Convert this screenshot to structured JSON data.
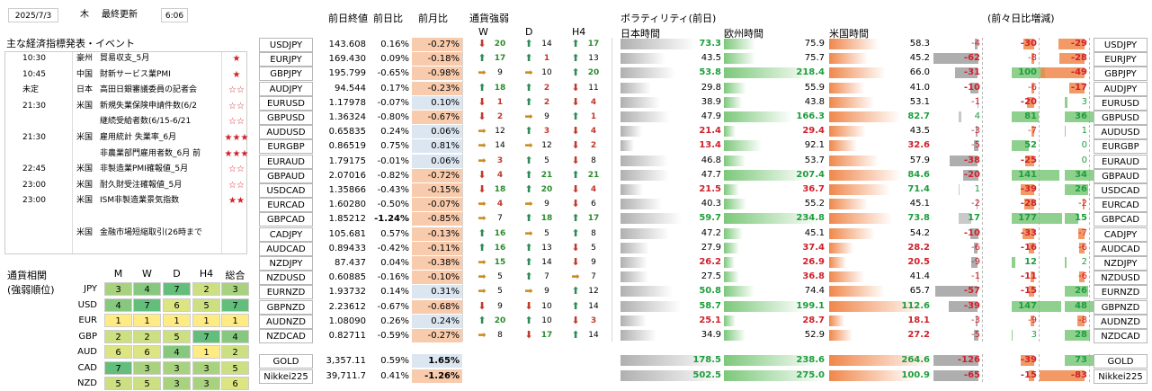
{
  "header": {
    "date": "2025/7/3",
    "weekday": "木",
    "update_label": "最終更新",
    "update_time": "6:06"
  },
  "events": {
    "title": "主な経済指標発表・イベント",
    "rows": [
      {
        "time": "10:30",
        "country": "豪州",
        "name": "貿易収支_5月",
        "stars": "★"
      },
      {
        "time": "10:45",
        "country": "中国",
        "name": "財新サービス業PMI",
        "stars": "★"
      },
      {
        "time": "未定",
        "country": "日本",
        "name": "高田日銀審議委員の記者会",
        "stars": "☆☆"
      },
      {
        "time": "21:30",
        "country": "米国",
        "name": "新規失業保険申請件数(6/2",
        "stars": "☆☆"
      },
      {
        "time": "",
        "country": "",
        "name": "継続受給者数(6/15-6/21",
        "stars": "☆☆"
      },
      {
        "time": "21:30",
        "country": "米国",
        "name": "雇用統計 失業率_6月",
        "stars": "★★★"
      },
      {
        "time": "",
        "country": "",
        "name": "非農業部門雇用者数_6月 前",
        "stars": "★★★"
      },
      {
        "time": "22:45",
        "country": "米国",
        "name": "非製造業PMI確報値_5月",
        "stars": "☆☆"
      },
      {
        "time": "23:00",
        "country": "米国",
        "name": "耐久財受注確報値_5月",
        "stars": "☆☆"
      },
      {
        "time": "23:00",
        "country": "米国",
        "name": "ISM非製造業景気指数",
        "stars": "★★"
      },
      {
        "time": "",
        "country": "",
        "name": "",
        "stars": ""
      },
      {
        "time": "",
        "country": "米国",
        "name": "金融市場短縮取引(26時まで",
        "stars": ""
      }
    ]
  },
  "correlation": {
    "title1": "通貨相関",
    "title2": "(強弱順位)",
    "headers": [
      "M",
      "W",
      "D",
      "H4",
      "総合"
    ],
    "rows": [
      {
        "ccy": "JPY",
        "vals": [
          "3",
          "4",
          "7",
          "2",
          "3"
        ]
      },
      {
        "ccy": "USD",
        "vals": [
          "4",
          "7",
          "6",
          "5",
          "7"
        ]
      },
      {
        "ccy": "EUR",
        "vals": [
          "1",
          "1",
          "1",
          "1",
          "1"
        ]
      },
      {
        "ccy": "GBP",
        "vals": [
          "2",
          "2",
          "5",
          "7",
          "4"
        ]
      },
      {
        "ccy": "AUD",
        "vals": [
          "6",
          "6",
          "4",
          "1",
          "2"
        ]
      },
      {
        "ccy": "CAD",
        "vals": [
          "7",
          "3",
          "3",
          "3",
          "5"
        ]
      },
      {
        "ccy": "NZD",
        "vals": [
          "5",
          "5",
          "3",
          "3",
          "6"
        ]
      }
    ]
  },
  "market": {
    "headers": {
      "close": "前日終値",
      "dchg": "前日比",
      "mchg": "前月比",
      "strength": "通貨強弱",
      "w": "W",
      "d": "D",
      "h4": "H4",
      "vol": "ボラティリティ(前日)",
      "jp": "日本時間",
      "eu": "欧州時間",
      "us": "米国時間",
      "diff": "(前々日比増減)"
    },
    "rows": [
      {
        "pair": "USDJPY",
        "close": "143.608",
        "dchg": "0.16%",
        "mchg": "-0.27%",
        "w": [
          "dn",
          "20"
        ],
        "d": [
          "up",
          "14"
        ],
        "h4": [
          "up",
          "17"
        ],
        "vjp": "73.3",
        "veu": "75.9",
        "vus": "58.3",
        "djp": "-4",
        "deu": "-30",
        "dus": "-29"
      },
      {
        "pair": "EURJPY",
        "close": "169.430",
        "dchg": "0.09%",
        "mchg": "-0.18%",
        "w": [
          "up",
          "17"
        ],
        "d": [
          "up",
          "1"
        ],
        "h4": [
          "up",
          "13"
        ],
        "vjp": "43.5",
        "veu": "75.7",
        "vus": "45.2",
        "djp": "-62",
        "deu": "-8",
        "dus": "-28"
      },
      {
        "pair": "GBPJPY",
        "close": "195.799",
        "dchg": "-0.65%",
        "mchg": "-0.98%",
        "w": [
          "fl",
          "9"
        ],
        "d": [
          "fl",
          "10"
        ],
        "h4": [
          "up",
          "20"
        ],
        "vjp": "53.8",
        "veu": "218.4",
        "vus": "66.0",
        "djp": "-31",
        "deu": "100",
        "dus": "-49"
      },
      {
        "pair": "AUDJPY",
        "close": "94.544",
        "dchg": "0.17%",
        "mchg": "-0.23%",
        "w": [
          "up",
          "18"
        ],
        "d": [
          "up",
          "2"
        ],
        "h4": [
          "dn",
          "11"
        ],
        "vjp": "29.8",
        "veu": "55.9",
        "vus": "41.0",
        "djp": "-10",
        "deu": "-6",
        "dus": "-17"
      },
      {
        "pair": "EURUSD",
        "close": "1.17978",
        "dchg": "-0.07%",
        "mchg": "0.10%",
        "w": [
          "dn",
          "1"
        ],
        "d": [
          "up",
          "2"
        ],
        "h4": [
          "dn",
          "4"
        ],
        "vjp": "38.9",
        "veu": "43.8",
        "vus": "53.1",
        "djp": "-1",
        "deu": "-20",
        "dus": "3"
      },
      {
        "pair": "GBPUSD",
        "close": "1.36324",
        "dchg": "-0.80%",
        "mchg": "-0.67%",
        "w": [
          "dn",
          "2"
        ],
        "d": [
          "fl",
          "9"
        ],
        "h4": [
          "up",
          "1"
        ],
        "vjp": "47.9",
        "veu": "166.3",
        "vus": "82.7",
        "djp": "4",
        "deu": "81",
        "dus": "36"
      },
      {
        "pair": "AUDUSD",
        "close": "0.65835",
        "dchg": "0.24%",
        "mchg": "0.06%",
        "w": [
          "fl",
          "12"
        ],
        "d": [
          "up",
          "3"
        ],
        "h4": [
          "dn",
          "4"
        ],
        "vjp": "21.4",
        "veu": "29.4",
        "vus": "43.5",
        "djp": "-3",
        "deu": "-7",
        "dus": "1"
      },
      {
        "pair": "EURGBP",
        "close": "0.86519",
        "dchg": "0.75%",
        "mchg": "0.81%",
        "w": [
          "fl",
          "14"
        ],
        "d": [
          "fl",
          "12"
        ],
        "h4": [
          "dn",
          "2"
        ],
        "vjp": "13.4",
        "veu": "92.1",
        "vus": "32.6",
        "djp": "-5",
        "deu": "52",
        "dus": "0"
      },
      {
        "pair": "EURAUD",
        "close": "1.79175",
        "dchg": "-0.01%",
        "mchg": "0.06%",
        "w": [
          "fl",
          "3"
        ],
        "d": [
          "up",
          "5"
        ],
        "h4": [
          "dn",
          "8"
        ],
        "vjp": "46.8",
        "veu": "53.7",
        "vus": "57.9",
        "djp": "-38",
        "deu": "-25",
        "dus": "0"
      },
      {
        "pair": "GBPAUD",
        "close": "2.07016",
        "dchg": "-0.82%",
        "mchg": "-0.72%",
        "w": [
          "dn",
          "4"
        ],
        "d": [
          "up",
          "21"
        ],
        "h4": [
          "up",
          "21"
        ],
        "vjp": "47.7",
        "veu": "207.4",
        "vus": "84.6",
        "djp": "-20",
        "deu": "141",
        "dus": "34"
      },
      {
        "pair": "USDCAD",
        "close": "1.35866",
        "dchg": "-0.43%",
        "mchg": "-0.15%",
        "w": [
          "dn",
          "18"
        ],
        "d": [
          "up",
          "20"
        ],
        "h4": [
          "dn",
          "4"
        ],
        "vjp": "21.5",
        "veu": "36.7",
        "vus": "71.4",
        "djp": "1",
        "deu": "-39",
        "dus": "26"
      },
      {
        "pair": "EURCAD",
        "close": "1.60280",
        "dchg": "-0.50%",
        "mchg": "-0.07%",
        "w": [
          "fl",
          "4"
        ],
        "d": [
          "fl",
          "9"
        ],
        "h4": [
          "dn",
          "6"
        ],
        "vjp": "40.3",
        "veu": "55.2",
        "vus": "45.1",
        "djp": "-2",
        "deu": "-28",
        "dus": "-2"
      },
      {
        "pair": "GBPCAD",
        "close": "1.85212",
        "dchg": "-1.24%",
        "mchg": "-0.85%",
        "w": [
          "fl",
          "7"
        ],
        "d": [
          "up",
          "18"
        ],
        "h4": [
          "up",
          "17"
        ],
        "vjp": "59.7",
        "veu": "234.8",
        "vus": "73.8",
        "djp": "17",
        "deu": "177",
        "dus": "15"
      },
      {
        "pair": "CADJPY",
        "close": "105.681",
        "dchg": "0.57%",
        "mchg": "-0.13%",
        "w": [
          "up",
          "16"
        ],
        "d": [
          "fl",
          "5"
        ],
        "h4": [
          "up",
          "8"
        ],
        "vjp": "47.2",
        "veu": "45.1",
        "vus": "54.2",
        "djp": "-10",
        "deu": "-33",
        "dus": "-7"
      },
      {
        "pair": "AUDCAD",
        "close": "0.89433",
        "dchg": "-0.42%",
        "mchg": "-0.11%",
        "w": [
          "up",
          "16"
        ],
        "d": [
          "up",
          "13"
        ],
        "h4": [
          "dn",
          "5"
        ],
        "vjp": "27.9",
        "veu": "37.4",
        "vus": "28.2",
        "djp": "-6",
        "deu": "-16",
        "dus": "-6"
      },
      {
        "pair": "NZDJPY",
        "close": "87.437",
        "dchg": "0.04%",
        "mchg": "-0.38%",
        "w": [
          "fl",
          "15"
        ],
        "d": [
          "up",
          "14"
        ],
        "h4": [
          "dn",
          "9"
        ],
        "vjp": "26.2",
        "veu": "26.9",
        "vus": "20.5",
        "djp": "-9",
        "deu": "12",
        "dus": "2"
      },
      {
        "pair": "NZDUSD",
        "close": "0.60885",
        "dchg": "-0.16%",
        "mchg": "-0.10%",
        "w": [
          "fl",
          "5"
        ],
        "d": [
          "up",
          "7"
        ],
        "h4": [
          "fl",
          "7"
        ],
        "vjp": "27.5",
        "veu": "36.8",
        "vus": "41.4",
        "djp": "-1",
        "deu": "-11",
        "dus": "-6"
      },
      {
        "pair": "EURNZD",
        "close": "1.93732",
        "dchg": "0.14%",
        "mchg": "0.31%",
        "w": [
          "fl",
          "5"
        ],
        "d": [
          "fl",
          "9"
        ],
        "h4": [
          "up",
          "12"
        ],
        "vjp": "50.8",
        "veu": "74.4",
        "vus": "65.7",
        "djp": "-57",
        "deu": "-15",
        "dus": "26"
      },
      {
        "pair": "GBPNZD",
        "close": "2.23612",
        "dchg": "-0.67%",
        "mchg": "-0.68%",
        "w": [
          "dn",
          "9"
        ],
        "d": [
          "dn",
          "10"
        ],
        "h4": [
          "up",
          "14"
        ],
        "vjp": "58.7",
        "veu": "199.1",
        "vus": "112.6",
        "djp": "-39",
        "deu": "147",
        "dus": "48"
      },
      {
        "pair": "AUDNZD",
        "close": "1.08090",
        "dchg": "0.26%",
        "mchg": "0.24%",
        "w": [
          "up",
          "20"
        ],
        "d": [
          "up",
          "10"
        ],
        "h4": [
          "dn",
          "3"
        ],
        "vjp": "25.1",
        "veu": "28.7",
        "vus": "18.1",
        "djp": "-3",
        "deu": "-9",
        "dus": "-8"
      },
      {
        "pair": "NZDCAD",
        "close": "0.82711",
        "dchg": "-0.59%",
        "mchg": "-0.27%",
        "w": [
          "fl",
          "8"
        ],
        "d": [
          "dn",
          "17"
        ],
        "h4": [
          "up",
          "14"
        ],
        "vjp": "34.9",
        "veu": "52.9",
        "vus": "27.2",
        "djp": "-5",
        "deu": "3",
        "dus": "28"
      }
    ],
    "extra": [
      {
        "pair": "GOLD",
        "close": "3,357.11",
        "dchg": "0.59%",
        "mchg": "1.65%",
        "vjp": "178.5",
        "veu": "238.6",
        "vus": "264.6",
        "djp": "-126",
        "deu": "-39",
        "dus": "73"
      },
      {
        "pair": "Nikkei225",
        "close": "39,711.7",
        "dchg": "0.41%",
        "mchg": "-1.26%",
        "vjp": "502.5",
        "veu": "275.0",
        "vus": "100.9",
        "djp": "-65",
        "deu": "-15",
        "dus": "-83"
      }
    ]
  },
  "colors": {
    "green": "#1e9e3e",
    "red": "#d0202a",
    "blue": "#dce6f1",
    "salmon": "#f8cbad"
  }
}
